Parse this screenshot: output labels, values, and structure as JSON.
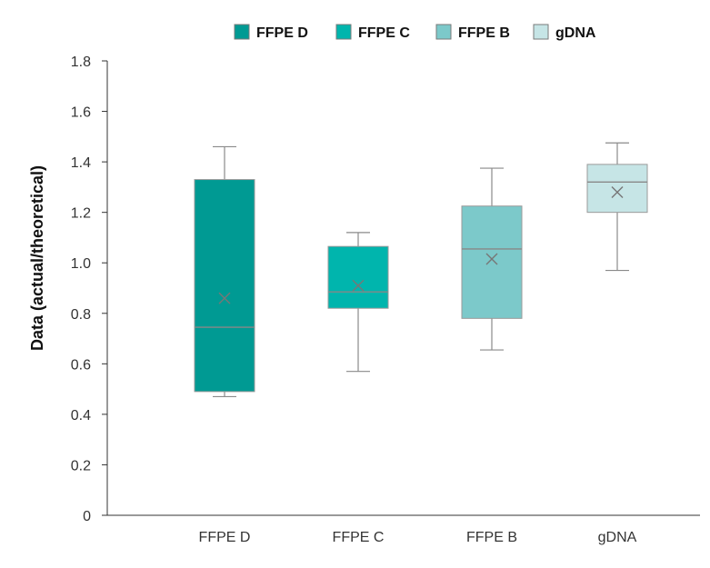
{
  "chart_data": {
    "type": "box",
    "ylabel": "Data (actual/theoretical)",
    "xlabel": "",
    "ylim": [
      0,
      1.8
    ],
    "yticks": [
      "0",
      "0.2",
      "0.4",
      "0.6",
      "0.8",
      "1.0",
      "1.2",
      "1.4",
      "1.6",
      "1.8"
    ],
    "ytick_values": [
      0,
      0.2,
      0.4,
      0.6,
      0.8,
      1.0,
      1.2,
      1.4,
      1.6,
      1.8
    ],
    "categories": [
      "FFPE D",
      "FFPE C",
      "FFPE B",
      "gDNA"
    ],
    "legend": {
      "placement": "top",
      "entries": [
        "FFPE D",
        "FFPE C",
        "FFPE B",
        "gDNA"
      ]
    },
    "series": [
      {
        "name": "FFPE D",
        "min": 0.47,
        "q1": 0.49,
        "median": 0.745,
        "q3": 1.33,
        "max": 1.46,
        "mean": 0.86,
        "color": "#009a93"
      },
      {
        "name": "FFPE C",
        "min": 0.57,
        "q1": 0.82,
        "median": 0.885,
        "q3": 1.065,
        "max": 1.12,
        "mean": 0.91,
        "color": "#00b5ad"
      },
      {
        "name": "FFPE B",
        "min": 0.655,
        "q1": 0.78,
        "median": 1.055,
        "q3": 1.225,
        "max": 1.375,
        "mean": 1.015,
        "color": "#7cc9ca"
      },
      {
        "name": "gDNA",
        "min": 0.97,
        "q1": 1.2,
        "median": 1.32,
        "q3": 1.39,
        "max": 1.475,
        "mean": 1.28,
        "color": "#c6e5e6"
      }
    ],
    "grid": false
  }
}
